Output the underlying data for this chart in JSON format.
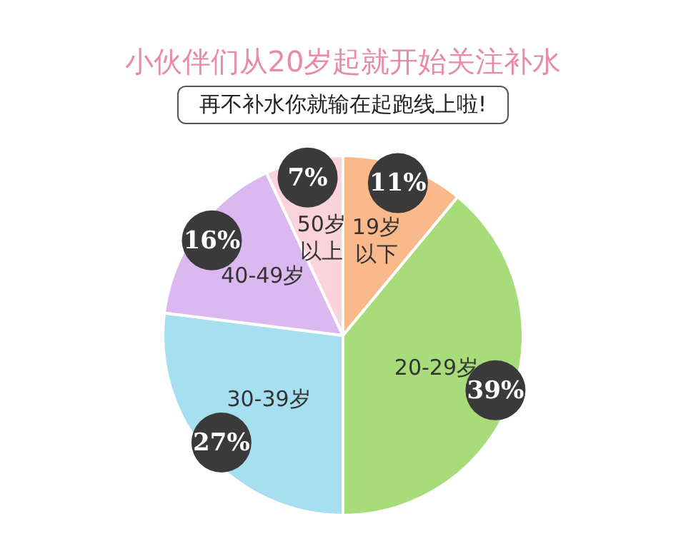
{
  "chart_data": {
    "type": "pie",
    "title": "小伙伴们从20岁起就开始关注补水",
    "subtitle": "再不补水你就输在起跑线上啦!",
    "categories": [
      "19岁以下",
      "20-29岁",
      "30-39岁",
      "40-49岁",
      "50岁以上"
    ],
    "values": [
      11,
      39,
      27,
      16,
      7
    ],
    "value_labels": [
      "11%",
      "39%",
      "27%",
      "16%",
      "7%"
    ],
    "colors": [
      "#f9b98a",
      "#a8dc7a",
      "#a6dff0",
      "#dcb8f0",
      "#fbd3dc"
    ],
    "legend": false
  }
}
